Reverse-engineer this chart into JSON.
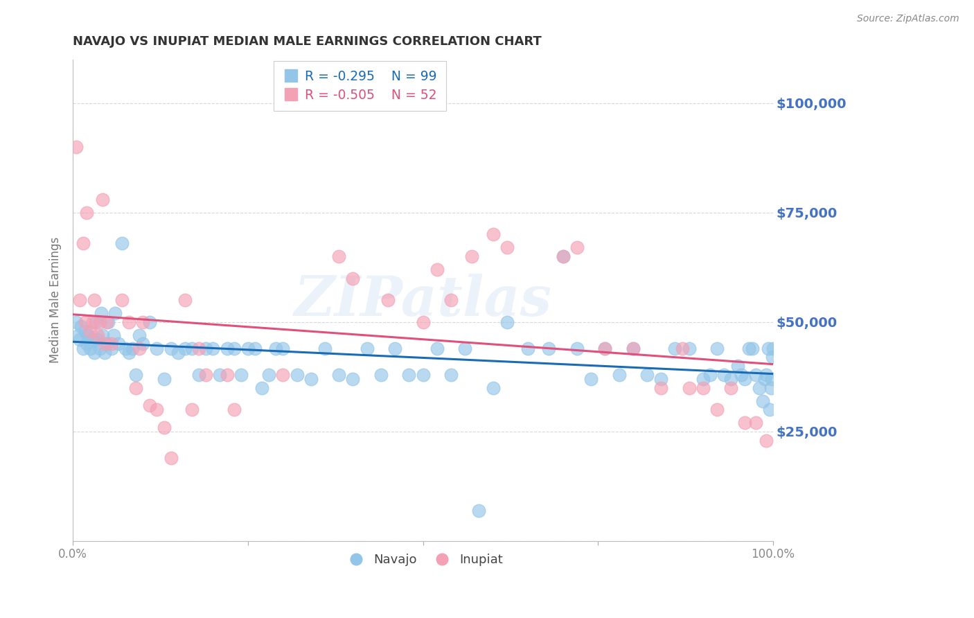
{
  "title": "NAVAJO VS INUPIAT MEDIAN MALE EARNINGS CORRELATION CHART",
  "source": "Source: ZipAtlas.com",
  "ylabel": "Median Male Earnings",
  "yticks": [
    0,
    25000,
    50000,
    75000,
    100000
  ],
  "ytick_labels": [
    "",
    "$25,000",
    "$50,000",
    "$75,000",
    "$100,000"
  ],
  "ymin": 0,
  "ymax": 110000,
  "xmin": 0.0,
  "xmax": 1.0,
  "navajo_color": "#92C5E8",
  "inupiat_color": "#F4A0B5",
  "navajo_line_color": "#1A6BB5",
  "inupiat_line_color": "#E0507A",
  "navajo_label": "Navajo",
  "inupiat_label": "Inupiat",
  "navajo_R": "-0.295",
  "navajo_N": "99",
  "inupiat_R": "-0.505",
  "inupiat_N": "52",
  "watermark_text": "ZIPatlas",
  "grid_color": "#D8D8D8",
  "background_color": "#FFFFFF",
  "title_color": "#333333",
  "source_color": "#888888",
  "ylabel_color": "#777777",
  "ytick_color": "#4472C4",
  "xtick_color": "#888888",
  "legend_edge_color": "#CCCCCC",
  "navajo_x": [
    0.005,
    0.008,
    0.01,
    0.012,
    0.015,
    0.018,
    0.02,
    0.022,
    0.025,
    0.028,
    0.03,
    0.032,
    0.035,
    0.038,
    0.04,
    0.042,
    0.045,
    0.048,
    0.05,
    0.055,
    0.058,
    0.06,
    0.065,
    0.07,
    0.075,
    0.08,
    0.085,
    0.09,
    0.095,
    0.1,
    0.11,
    0.12,
    0.13,
    0.14,
    0.15,
    0.16,
    0.17,
    0.18,
    0.19,
    0.2,
    0.21,
    0.22,
    0.23,
    0.24,
    0.25,
    0.26,
    0.27,
    0.28,
    0.29,
    0.3,
    0.32,
    0.34,
    0.36,
    0.38,
    0.4,
    0.42,
    0.44,
    0.46,
    0.48,
    0.5,
    0.52,
    0.54,
    0.56,
    0.58,
    0.6,
    0.62,
    0.65,
    0.68,
    0.7,
    0.72,
    0.74,
    0.76,
    0.78,
    0.8,
    0.82,
    0.84,
    0.86,
    0.88,
    0.9,
    0.91,
    0.92,
    0.93,
    0.94,
    0.95,
    0.955,
    0.96,
    0.965,
    0.97,
    0.975,
    0.98,
    0.985,
    0.988,
    0.99,
    0.993,
    0.995,
    0.997,
    0.998,
    0.999,
    1.0
  ],
  "navajo_y": [
    50000,
    47000,
    46000,
    49000,
    44000,
    48000,
    45000,
    47000,
    44000,
    46000,
    43000,
    50000,
    46000,
    44000,
    52000,
    47000,
    43000,
    45000,
    50000,
    44000,
    47000,
    52000,
    45000,
    68000,
    44000,
    43000,
    44000,
    38000,
    47000,
    45000,
    50000,
    44000,
    37000,
    44000,
    43000,
    44000,
    44000,
    38000,
    44000,
    44000,
    38000,
    44000,
    44000,
    38000,
    44000,
    44000,
    35000,
    38000,
    44000,
    44000,
    38000,
    37000,
    44000,
    38000,
    37000,
    44000,
    38000,
    44000,
    38000,
    38000,
    44000,
    38000,
    44000,
    7000,
    35000,
    50000,
    44000,
    44000,
    65000,
    44000,
    37000,
    44000,
    38000,
    44000,
    38000,
    37000,
    44000,
    44000,
    37000,
    38000,
    44000,
    38000,
    37000,
    40000,
    38000,
    37000,
    44000,
    44000,
    38000,
    35000,
    32000,
    37000,
    38000,
    44000,
    30000,
    35000,
    37000,
    42000,
    44000
  ],
  "inupiat_x": [
    0.005,
    0.01,
    0.015,
    0.018,
    0.02,
    0.025,
    0.028,
    0.03,
    0.035,
    0.038,
    0.042,
    0.045,
    0.048,
    0.055,
    0.07,
    0.08,
    0.09,
    0.095,
    0.1,
    0.11,
    0.12,
    0.13,
    0.14,
    0.16,
    0.17,
    0.18,
    0.19,
    0.22,
    0.23,
    0.3,
    0.38,
    0.4,
    0.45,
    0.5,
    0.52,
    0.54,
    0.57,
    0.6,
    0.62,
    0.7,
    0.72,
    0.76,
    0.8,
    0.84,
    0.87,
    0.88,
    0.9,
    0.92,
    0.94,
    0.96,
    0.975,
    0.99
  ],
  "inupiat_y": [
    90000,
    55000,
    68000,
    50000,
    75000,
    48000,
    50000,
    55000,
    47000,
    50000,
    78000,
    45000,
    50000,
    45000,
    55000,
    50000,
    35000,
    44000,
    50000,
    31000,
    30000,
    26000,
    19000,
    55000,
    30000,
    44000,
    38000,
    38000,
    30000,
    38000,
    65000,
    60000,
    55000,
    50000,
    62000,
    55000,
    65000,
    70000,
    67000,
    65000,
    67000,
    44000,
    44000,
    35000,
    44000,
    35000,
    35000,
    30000,
    35000,
    27000,
    27000,
    23000
  ]
}
